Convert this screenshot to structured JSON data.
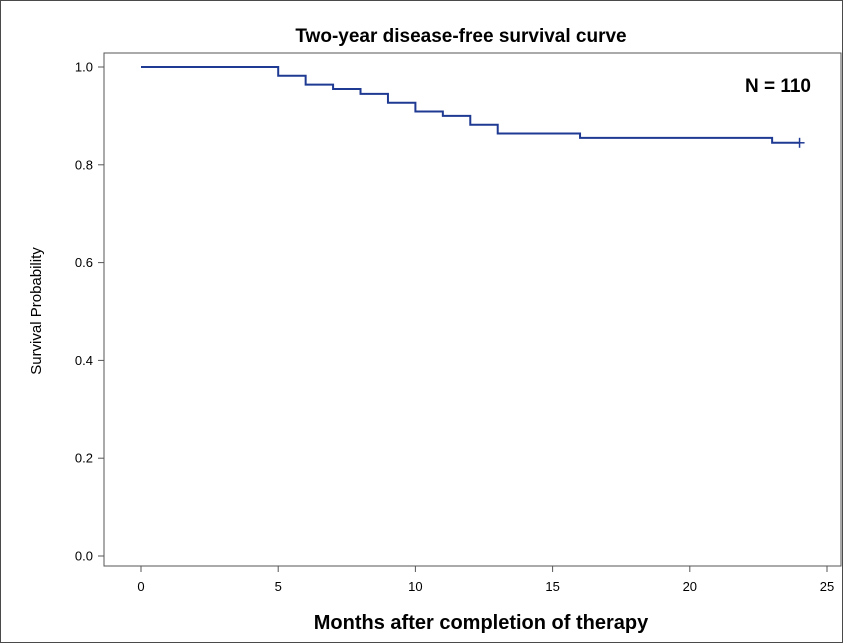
{
  "chart_data": {
    "type": "line",
    "title": "Two-year disease-free survival curve",
    "annotation": "N = 110",
    "xlabel": "Months after completion of therapy",
    "ylabel": "Survival Probability",
    "xlim": [
      0,
      25
    ],
    "ylim": [
      0,
      1
    ],
    "xticks": [
      "0",
      "5",
      "10",
      "15",
      "20",
      "25"
    ],
    "yticks": [
      "0.0",
      "0.2",
      "0.4",
      "0.6",
      "0.8",
      "1.0"
    ],
    "grid": false,
    "legend": "none",
    "series": [
      {
        "step": true,
        "color": "#1f3a93",
        "x": [
          0,
          5,
          6,
          7,
          8,
          9,
          10,
          11,
          12,
          13,
          16,
          23,
          24
        ],
        "y": [
          1.0,
          0.982,
          0.964,
          0.955,
          0.945,
          0.927,
          0.909,
          0.9,
          0.882,
          0.864,
          0.855,
          0.845,
          0.845
        ]
      }
    ],
    "censored": [
      {
        "x": 24,
        "y": 0.845
      }
    ]
  }
}
